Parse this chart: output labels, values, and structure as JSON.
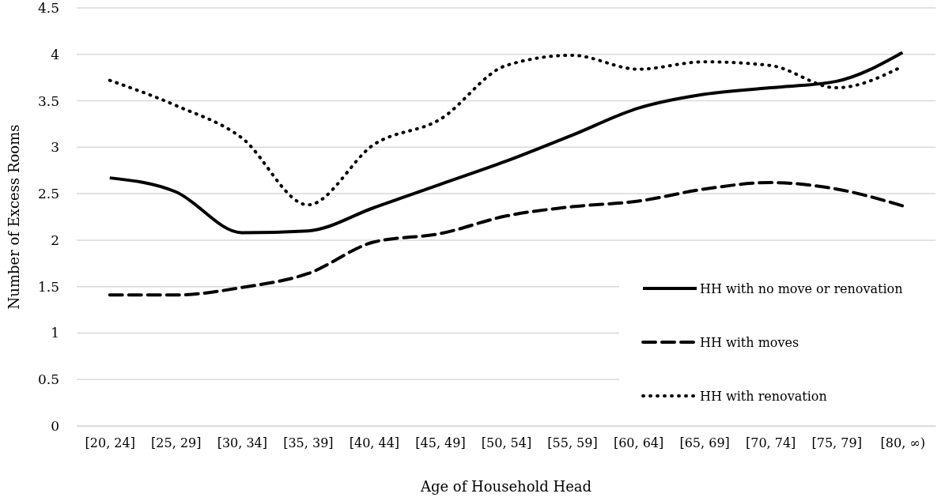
{
  "chart_data": {
    "type": "line",
    "xlabel": "Age of Household Head",
    "ylabel": "Number of Excess Rooms",
    "categories": [
      "[20, 24]",
      "[25, 29]",
      "[30, 34]",
      "[35, 39]",
      "[40, 44]",
      "[45, 49]",
      "[50, 54]",
      "[55, 59]",
      "[60, 64]",
      "[65, 69]",
      "[70, 74]",
      "[75, 79]",
      "[80, ∞)"
    ],
    "series": [
      {
        "name": "HH with no move or renovation",
        "color": "#000000",
        "line_style": "solid",
        "values": [
          2.67,
          2.52,
          2.08,
          2.1,
          2.35,
          2.6,
          2.85,
          3.13,
          3.42,
          3.57,
          3.64,
          3.71,
          4.02
        ]
      },
      {
        "name": "HH with moves",
        "color": "#000000",
        "line_style": "dashed",
        "values": [
          1.41,
          1.41,
          1.49,
          1.64,
          1.98,
          2.07,
          2.26,
          2.36,
          2.42,
          2.55,
          2.62,
          2.55,
          2.37
        ]
      },
      {
        "name": "HH with renovation",
        "color": "#000000",
        "line_style": "dotted",
        "values": [
          3.72,
          3.45,
          3.1,
          2.38,
          3.03,
          3.3,
          3.88,
          3.99,
          3.84,
          3.92,
          3.88,
          3.64,
          3.87
        ]
      }
    ],
    "ylim": [
      0,
      4.5
    ],
    "yticks": [
      0,
      0.5,
      1,
      1.5,
      2,
      2.5,
      3,
      3.5,
      4,
      4.5
    ],
    "grid": "y",
    "legend": "bottom right",
    "marker": "none"
  }
}
